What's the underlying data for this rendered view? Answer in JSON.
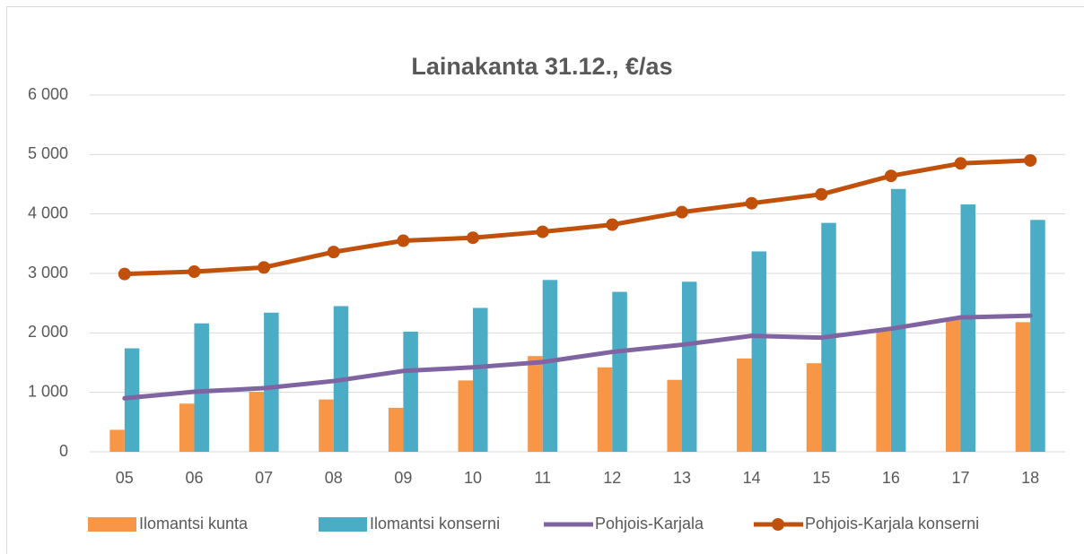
{
  "chart_data": {
    "type": "bar",
    "title": "Lainakanta 31.12., €/as",
    "categories": [
      "05",
      "06",
      "07",
      "08",
      "09",
      "10",
      "11",
      "12",
      "13",
      "14",
      "15",
      "16",
      "17",
      "18"
    ],
    "series": [
      {
        "name": "Ilomantsi kunta",
        "type": "bar",
        "color": "#f79646",
        "values": [
          370,
          810,
          1010,
          880,
          740,
          1200,
          1610,
          1420,
          1210,
          1570,
          1490,
          2030,
          2250,
          2180
        ]
      },
      {
        "name": "Ilomantsi konserni",
        "type": "bar",
        "color": "#4bacc6",
        "values": [
          1740,
          2160,
          2340,
          2450,
          2020,
          2420,
          2890,
          2690,
          2860,
          3370,
          3850,
          4420,
          4160,
          3900
        ]
      },
      {
        "name": "Pohjois-Karjala",
        "type": "line",
        "color": "#8064a2",
        "values": [
          900,
          1010,
          1070,
          1190,
          1360,
          1420,
          1510,
          1680,
          1800,
          1950,
          1920,
          2070,
          2260,
          2290
        ]
      },
      {
        "name": "Pohjois-Karjala konserni",
        "type": "line",
        "marker": true,
        "color": "#c0500a",
        "values": [
          2990,
          3030,
          3100,
          3360,
          3550,
          3600,
          3700,
          3820,
          4030,
          4180,
          4330,
          4640,
          4850,
          4900
        ]
      }
    ],
    "ylim": [
      0,
      6000
    ],
    "yticks": [
      0,
      {
        "value": 1000,
        "label": "1 000"
      },
      {
        "value": 2000,
        "label": "2 000"
      },
      {
        "value": 3000,
        "label": "3 000"
      },
      {
        "value": 4000,
        "label": "4 000"
      },
      {
        "value": 5000,
        "label": "5 000"
      },
      {
        "value": 6000,
        "label": "6 000"
      }
    ],
    "grid": true,
    "legend": "bottom"
  }
}
